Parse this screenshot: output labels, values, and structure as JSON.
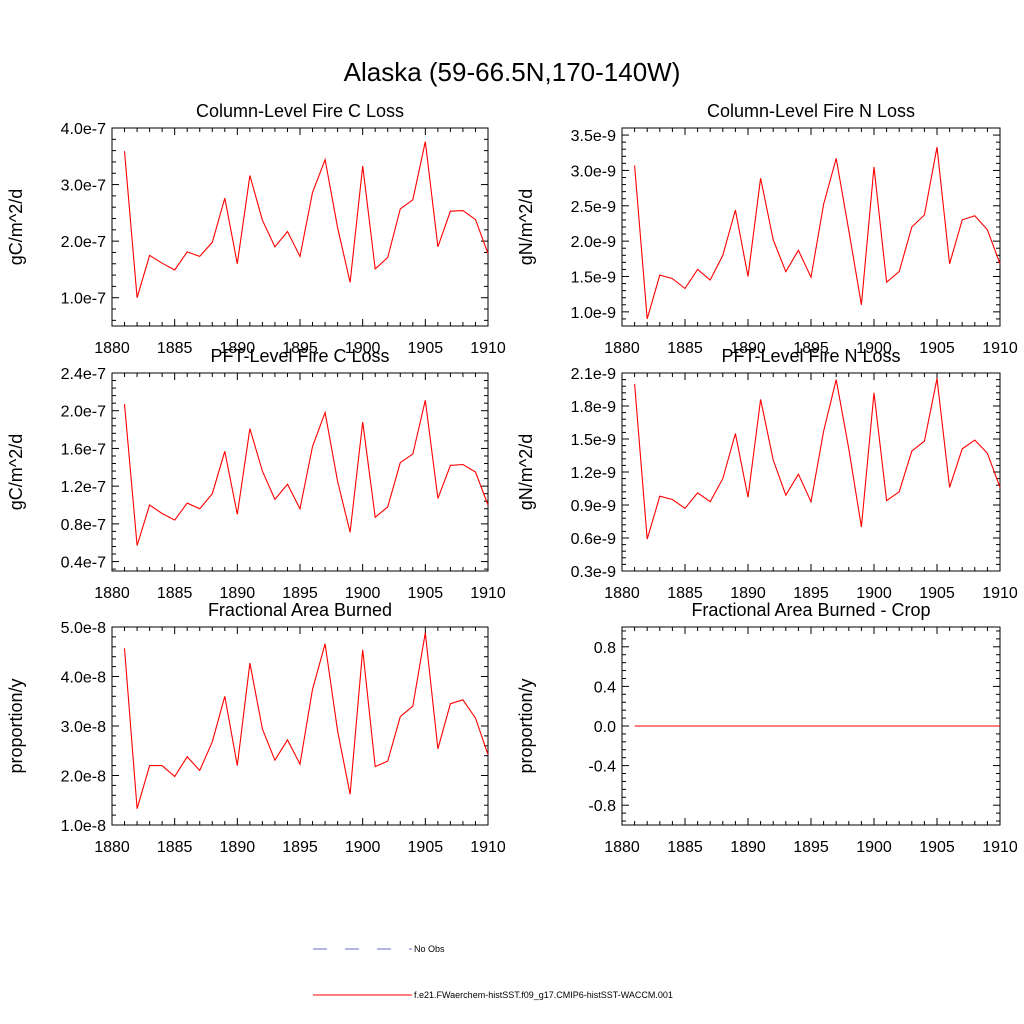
{
  "figure": {
    "title": "Alaska (59-66.5N,170-140W)",
    "legend": [
      {
        "label": "No Obs",
        "color": "#6a6acd",
        "dash": "dashed"
      },
      {
        "label": "f.e21.FWaerchem-histSST.f09_g17.CMIP6-histSST-WACCM.001",
        "color": "#ff0000",
        "dash": "solid"
      }
    ]
  },
  "chart_data": [
    {
      "type": "line",
      "title": "Column-Level Fire C Loss",
      "xlabel": "",
      "ylabel": "gC/m^2/d",
      "xlim": [
        1880,
        1910
      ],
      "ylim": [
        5e-08,
        4e-07
      ],
      "yticks": [
        1e-07,
        2e-07,
        3e-07,
        4e-07
      ],
      "ytick_labels": [
        "1.0e-7",
        "2.0e-7",
        "3.0e-7",
        "4.0e-7"
      ],
      "xticks": [
        1880,
        1885,
        1890,
        1895,
        1900,
        1905,
        1910
      ],
      "series": [
        {
          "name": "f.e21.FWaerchem-histSST.f09_g17.CMIP6-histSST-WACCM.001",
          "color": "#ff0000",
          "x": [
            1881,
            1882,
            1883,
            1884,
            1885,
            1886,
            1887,
            1888,
            1889,
            1890,
            1891,
            1892,
            1893,
            1894,
            1895,
            1896,
            1897,
            1898,
            1899,
            1900,
            1901,
            1902,
            1903,
            1904,
            1905,
            1906,
            1907,
            1908,
            1909,
            1910
          ],
          "y": [
            3.59e-07,
            1e-07,
            1.75e-07,
            1.61e-07,
            1.49e-07,
            1.81e-07,
            1.73e-07,
            1.98e-07,
            2.76e-07,
            1.6e-07,
            3.16e-07,
            2.37e-07,
            1.9e-07,
            2.17e-07,
            1.73e-07,
            2.86e-07,
            3.44e-07,
            2.24e-07,
            1.27e-07,
            3.33e-07,
            1.51e-07,
            1.71e-07,
            2.57e-07,
            2.73e-07,
            3.76e-07,
            1.9e-07,
            2.53e-07,
            2.54e-07,
            2.38e-07,
            1.78e-07
          ]
        }
      ]
    },
    {
      "type": "line",
      "title": "Column-Level Fire N Loss",
      "xlabel": "",
      "ylabel": "gN/m^2/d",
      "xlim": [
        1880,
        1910
      ],
      "ylim": [
        8e-10,
        3.6e-09
      ],
      "yticks": [
        1e-09,
        1.5e-09,
        2e-09,
        2.5e-09,
        3e-09,
        3.5e-09
      ],
      "ytick_labels": [
        "1.0e-9",
        "1.5e-9",
        "2.0e-9",
        "2.5e-9",
        "3.0e-9",
        "3.5e-9"
      ],
      "xticks": [
        1880,
        1885,
        1890,
        1895,
        1900,
        1905,
        1910
      ],
      "series": [
        {
          "name": "f.e21.FWaerchem-histSST.f09_g17.CMIP6-histSST-WACCM.001",
          "color": "#ff0000",
          "x": [
            1881,
            1882,
            1883,
            1884,
            1885,
            1886,
            1887,
            1888,
            1889,
            1890,
            1891,
            1892,
            1893,
            1894,
            1895,
            1896,
            1897,
            1898,
            1899,
            1900,
            1901,
            1902,
            1903,
            1904,
            1905,
            1906,
            1907,
            1908,
            1909,
            1910
          ],
          "y": [
            3.07e-09,
            9e-10,
            1.52e-09,
            1.47e-09,
            1.33e-09,
            1.6e-09,
            1.45e-09,
            1.8e-09,
            2.44e-09,
            1.5e-09,
            2.89e-09,
            2.02e-09,
            1.57e-09,
            1.87e-09,
            1.49e-09,
            2.52e-09,
            3.17e-09,
            2.15e-09,
            1.1e-09,
            3.05e-09,
            1.42e-09,
            1.57e-09,
            2.2e-09,
            2.37e-09,
            3.33e-09,
            1.68e-09,
            2.3e-09,
            2.36e-09,
            2.16e-09,
            1.68e-09
          ]
        }
      ]
    },
    {
      "type": "line",
      "title": "PFT-Level Fire C Loss",
      "xlabel": "",
      "ylabel": "gC/m^2/d",
      "xlim": [
        1880,
        1910
      ],
      "ylim": [
        3e-08,
        2.4e-07
      ],
      "yticks": [
        4e-08,
        8e-08,
        1.2e-07,
        1.6e-07,
        2e-07,
        2.4e-07
      ],
      "ytick_labels": [
        "0.4e-7",
        "0.8e-7",
        "1.2e-7",
        "1.6e-7",
        "2.0e-7",
        "2.4e-7"
      ],
      "xticks": [
        1880,
        1885,
        1890,
        1895,
        1900,
        1905,
        1910
      ],
      "series": [
        {
          "name": "f.e21.FWaerchem-histSST.f09_g17.CMIP6-histSST-WACCM.001",
          "color": "#ff0000",
          "x": [
            1881,
            1882,
            1883,
            1884,
            1885,
            1886,
            1887,
            1888,
            1889,
            1890,
            1891,
            1892,
            1893,
            1894,
            1895,
            1896,
            1897,
            1898,
            1899,
            1900,
            1901,
            1902,
            1903,
            1904,
            1905,
            1906,
            1907,
            1908,
            1909,
            1910
          ],
          "y": [
            2.07e-07,
            5.7e-08,
            1e-07,
            9.1e-08,
            8.4e-08,
            1.02e-07,
            9.6e-08,
            1.12e-07,
            1.57e-07,
            9e-08,
            1.81e-07,
            1.36e-07,
            1.06e-07,
            1.22e-07,
            9.6e-08,
            1.62e-07,
            1.98e-07,
            1.25e-07,
            7.1e-08,
            1.88e-07,
            8.7e-08,
            9.8e-08,
            1.45e-07,
            1.54e-07,
            2.11e-07,
            1.07e-07,
            1.42e-07,
            1.43e-07,
            1.35e-07,
            1e-07
          ]
        }
      ]
    },
    {
      "type": "line",
      "title": "PFT-Level Fire N Loss",
      "xlabel": "",
      "ylabel": "gN/m^2/d",
      "xlim": [
        1880,
        1910
      ],
      "ylim": [
        3e-10,
        2.1e-09
      ],
      "yticks": [
        3e-10,
        6e-10,
        9e-10,
        1.2e-09,
        1.5e-09,
        1.8e-09,
        2.1e-09
      ],
      "ytick_labels": [
        "0.3e-9",
        "0.6e-9",
        "0.9e-9",
        "1.2e-9",
        "1.5e-9",
        "1.8e-9",
        "2.1e-9"
      ],
      "xticks": [
        1880,
        1885,
        1890,
        1895,
        1900,
        1905,
        1910
      ],
      "series": [
        {
          "name": "f.e21.FWaerchem-histSST.f09_g17.CMIP6-histSST-WACCM.001",
          "color": "#ff0000",
          "x": [
            1881,
            1882,
            1883,
            1884,
            1885,
            1886,
            1887,
            1888,
            1889,
            1890,
            1891,
            1892,
            1893,
            1894,
            1895,
            1896,
            1897,
            1898,
            1899,
            1900,
            1901,
            1902,
            1903,
            1904,
            1905,
            1906,
            1907,
            1908,
            1909,
            1910
          ],
          "y": [
            2e-09,
            5.9e-10,
            9.8e-10,
            9.5e-10,
            8.7e-10,
            1.01e-09,
            9.3e-10,
            1.14e-09,
            1.55e-09,
            9.7e-10,
            1.86e-09,
            1.31e-09,
            9.9e-10,
            1.18e-09,
            9.3e-10,
            1.57e-09,
            2.04e-09,
            1.41e-09,
            7e-10,
            1.92e-09,
            9.4e-10,
            1.02e-09,
            1.39e-09,
            1.48e-09,
            2.05e-09,
            1.06e-09,
            1.41e-09,
            1.49e-09,
            1.37e-09,
            1.06e-09
          ]
        }
      ]
    },
    {
      "type": "line",
      "title": "Fractional Area Burned",
      "xlabel": "",
      "ylabel": "proportion/y",
      "xlim": [
        1880,
        1910
      ],
      "ylim": [
        1e-08,
        5e-08
      ],
      "yticks": [
        1e-08,
        2e-08,
        3e-08,
        4e-08,
        5e-08
      ],
      "ytick_labels": [
        "1.0e-8",
        "2.0e-8",
        "3.0e-8",
        "4.0e-8",
        "5.0e-8"
      ],
      "xticks": [
        1880,
        1885,
        1890,
        1895,
        1900,
        1905,
        1910
      ],
      "series": [
        {
          "name": "f.e21.FWaerchem-histSST.f09_g17.CMIP6-histSST-WACCM.001",
          "color": "#ff0000",
          "x": [
            1881,
            1882,
            1883,
            1884,
            1885,
            1886,
            1887,
            1888,
            1889,
            1890,
            1891,
            1892,
            1893,
            1894,
            1895,
            1896,
            1897,
            1898,
            1899,
            1900,
            1901,
            1902,
            1903,
            1904,
            1905,
            1906,
            1907,
            1908,
            1909,
            1910
          ],
          "y": [
            4.57e-08,
            1.33e-08,
            2.2e-08,
            2.2e-08,
            1.98e-08,
            2.38e-08,
            2.1e-08,
            2.68e-08,
            3.6e-08,
            2.2e-08,
            4.27e-08,
            2.94e-08,
            2.31e-08,
            2.72e-08,
            2.23e-08,
            3.74e-08,
            4.66e-08,
            2.9e-08,
            1.62e-08,
            4.54e-08,
            2.18e-08,
            2.29e-08,
            3.19e-08,
            3.4e-08,
            4.88e-08,
            2.54e-08,
            3.45e-08,
            3.53e-08,
            3.16e-08,
            2.42e-08
          ]
        }
      ]
    },
    {
      "type": "line",
      "title": "Fractional Area Burned - Crop",
      "xlabel": "",
      "ylabel": "proportion/y",
      "xlim": [
        1880,
        1910
      ],
      "ylim": [
        -1.0,
        1.0
      ],
      "yticks": [
        -0.8,
        -0.4,
        0.0,
        0.4,
        0.8
      ],
      "ytick_labels": [
        "-0.8",
        "-0.4",
        "0.0",
        "0.4",
        "0.8"
      ],
      "xticks": [
        1880,
        1885,
        1890,
        1895,
        1900,
        1905,
        1910
      ],
      "series": [
        {
          "name": "f.e21.FWaerchem-histSST.f09_g17.CMIP6-histSST-WACCM.001",
          "color": "#ff0000",
          "x": [
            1881,
            1882,
            1883,
            1884,
            1885,
            1886,
            1887,
            1888,
            1889,
            1890,
            1891,
            1892,
            1893,
            1894,
            1895,
            1896,
            1897,
            1898,
            1899,
            1900,
            1901,
            1902,
            1903,
            1904,
            1905,
            1906,
            1907,
            1908,
            1909,
            1910
          ],
          "y": [
            0,
            0,
            0,
            0,
            0,
            0,
            0,
            0,
            0,
            0,
            0,
            0,
            0,
            0,
            0,
            0,
            0,
            0,
            0,
            0,
            0,
            0,
            0,
            0,
            0,
            0,
            0,
            0,
            0,
            0
          ]
        }
      ]
    }
  ]
}
